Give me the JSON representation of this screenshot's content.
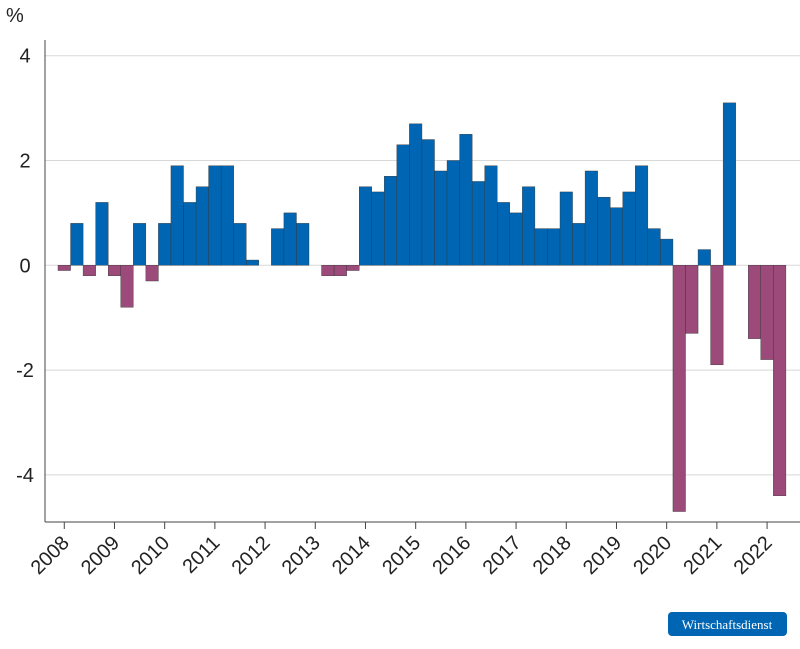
{
  "chart_data": {
    "type": "bar",
    "y_unit": "%",
    "source": "Wirtschaftsdienst",
    "categories": [
      "2008",
      null,
      null,
      null,
      "2009",
      null,
      null,
      null,
      "2010",
      null,
      null,
      null,
      "2011",
      null,
      null,
      null,
      "2012",
      null,
      null,
      null,
      "2013",
      null,
      null,
      null,
      "2014",
      null,
      null,
      null,
      "2015",
      null,
      null,
      null,
      "2016",
      null,
      null,
      null,
      "2017",
      null,
      null,
      null,
      "2018",
      null,
      null,
      null,
      "2019",
      null,
      null,
      null,
      "2020",
      null,
      null,
      null,
      "2021",
      null,
      null,
      null,
      "2022",
      null
    ],
    "values": [
      -0.1,
      0.8,
      -0.2,
      1.2,
      -0.2,
      -0.8,
      0.8,
      -0.3,
      0.8,
      1.9,
      1.2,
      1.5,
      1.9,
      1.9,
      0.8,
      0.1,
      0,
      0.7,
      1.0,
      0.8,
      0,
      -0.2,
      -0.2,
      -0.1,
      1.5,
      1.4,
      1.7,
      2.3,
      2.7,
      2.4,
      1.8,
      2.0,
      2.5,
      1.6,
      1.9,
      1.2,
      1.0,
      1.5,
      0.7,
      0.7,
      1.4,
      0.8,
      1.8,
      1.3,
      1.1,
      1.4,
      1.9,
      0.7,
      0.5,
      -4.7,
      -1.3,
      0.3,
      -1.9,
      3.1,
      0,
      -1.4,
      -1.8,
      -4.4
    ],
    "positive_color": "#0066b3",
    "negative_color": "#9b4a7a",
    "ylim": [
      -4.9,
      4.3
    ],
    "yticks": [
      -4,
      -2,
      0,
      2,
      4
    ],
    "grid": true
  }
}
